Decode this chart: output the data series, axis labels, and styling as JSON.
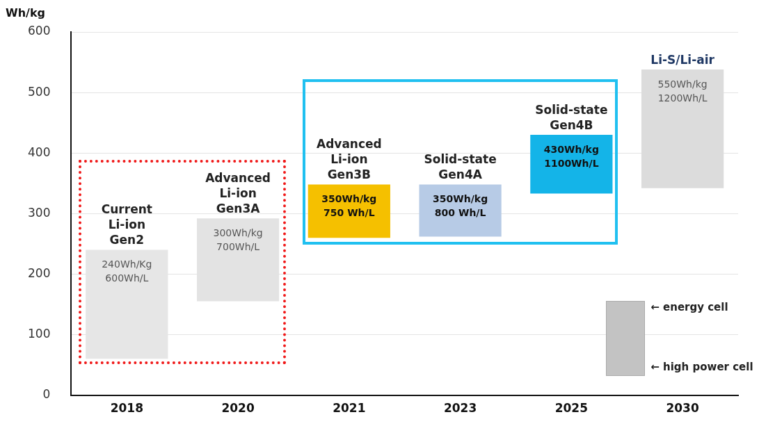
{
  "chart_data": {
    "type": "bar",
    "ylabel": "Wh/kg",
    "categories": [
      "2018",
      "2020",
      "2021",
      "2023",
      "2025",
      "2030"
    ],
    "base": [
      60,
      155,
      260,
      262,
      333,
      342
    ],
    "values": [
      180,
      137,
      88,
      86,
      97,
      196
    ],
    "colors": [
      "#e6e6e6",
      "#e3e3e3",
      "#f5c000",
      "#b7cbe6",
      "#14b4e8",
      "#dcdcdc"
    ],
    "ylim": [
      0,
      600
    ],
    "yticks": [
      0,
      100,
      200,
      300,
      400,
      500,
      600
    ],
    "grid": "y",
    "annotations": [
      {
        "text": "Current\nLi-ion\nGen2",
        "x": "2018",
        "y": 240
      },
      {
        "text": "Advanced\nLi-ion\nGen3A",
        "x": "2020",
        "y": 292
      },
      {
        "text": "Advanced\nLi-ion\nGen3B",
        "x": "2021",
        "y": 348
      },
      {
        "text": "Solid-state\nGen4A",
        "x": "2023",
        "y": 348
      },
      {
        "text": "Solid-state\nGen4B",
        "x": "2025",
        "y": 430
      },
      {
        "text": "Li-S/Li-air",
        "x": "2030",
        "y": 538
      },
      {
        "text": "240Wh/Kg\n600Wh/L",
        "x": "2018",
        "y": 240
      },
      {
        "text": "300Wh/kg\n700Wh/L",
        "x": "2020",
        "y": 292
      },
      {
        "text": "350Wh/kg\n750 Wh/L",
        "x": "2021",
        "y": 348
      },
      {
        "text": "350Wh/kg\n800 Wh/L",
        "x": "2023",
        "y": 348
      },
      {
        "text": "430Wh/kg\n1100Wh/L",
        "x": "2025",
        "y": 430
      },
      {
        "text": "550Wh/kg\n1200Wh/L",
        "x": "2030",
        "y": 538
      },
      "← energy cell",
      "← high power cell"
    ]
  }
}
